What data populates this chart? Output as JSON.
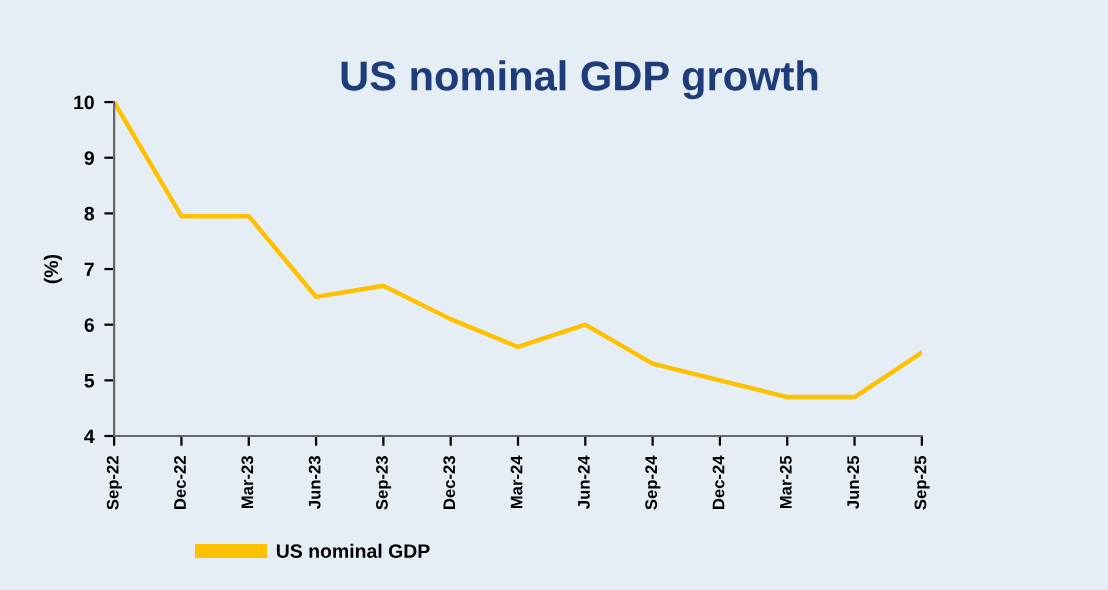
{
  "chart_data": {
    "type": "line",
    "title": "US nominal GDP growth",
    "ylabel": "(%)",
    "categories": [
      "Sep-22",
      "Dec-22",
      "Mar-23",
      "Jun-23",
      "Sep-23",
      "Dec-23",
      "Mar-24",
      "Jun-24",
      "Sep-24",
      "Dec-24",
      "Mar-25",
      "Jun-25",
      "Sep-25"
    ],
    "series": [
      {
        "name": "US nominal GDP",
        "color": "#ffc000",
        "values": [
          10,
          7.95,
          7.95,
          6.5,
          6.7,
          6.1,
          5.6,
          6.0,
          5.3,
          5.0,
          4.7,
          4.7,
          5.5
        ]
      }
    ],
    "ylim": [
      4,
      10
    ],
    "yticks": [
      4,
      5,
      6,
      7,
      8,
      9,
      10
    ],
    "grid": false,
    "legend": "bottom",
    "marker": "none",
    "line_style": "solid"
  }
}
